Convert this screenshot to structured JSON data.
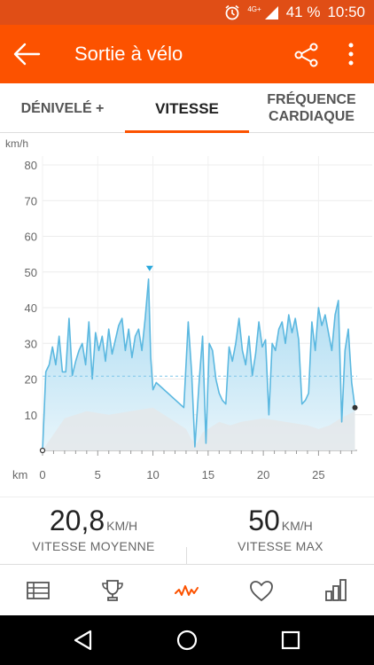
{
  "status": {
    "battery": "41 %",
    "time": "10:50",
    "network": "4G+"
  },
  "appbar": {
    "title": "Sortie à vélo"
  },
  "tabs": [
    {
      "label": "DÉNIVELÉ +",
      "active": false
    },
    {
      "label": "VITESSE",
      "active": true
    },
    {
      "label": "FRÉQUENCE\nCARDIAQUE",
      "active": false
    }
  ],
  "chart_data": {
    "type": "area",
    "title": "",
    "ylabel": "km/h",
    "xlabel": "km",
    "ylim": [
      0,
      80
    ],
    "xlim": [
      0,
      28.5
    ],
    "yticks": [
      10,
      20,
      30,
      40,
      50,
      60,
      70,
      80
    ],
    "xticks": [
      0,
      5,
      10,
      15,
      20,
      25
    ],
    "average_line": 20.8,
    "max_marker": {
      "x": 9.7,
      "y": 50
    },
    "grid": true,
    "series": [
      {
        "x": [
          0,
          0.3,
          0.6,
          0.9,
          1.2,
          1.5,
          1.8,
          2.1,
          2.4,
          2.7,
          3.0,
          3.3,
          3.6,
          3.9,
          4.2,
          4.5,
          4.8,
          5.1,
          5.4,
          5.7,
          6.0,
          6.3,
          6.6,
          6.9,
          7.2,
          7.5,
          7.8,
          8.1,
          8.4,
          8.7,
          9.0,
          9.3,
          9.6,
          9.8,
          10.0,
          10.3,
          12.8,
          13.2,
          13.5,
          13.8,
          14.2,
          14.5,
          14.8,
          15.1,
          15.4,
          15.7,
          16.0,
          16.3,
          16.6,
          16.9,
          17.2,
          17.5,
          17.8,
          18.1,
          18.4,
          18.7,
          19.0,
          19.3,
          19.6,
          19.9,
          20.2,
          20.5,
          20.8,
          21.1,
          21.4,
          21.7,
          22.0,
          22.3,
          22.6,
          22.9,
          23.2,
          23.5,
          23.8,
          24.1,
          24.4,
          24.7,
          25.0,
          25.3,
          25.6,
          25.9,
          26.2,
          26.5,
          26.8,
          27.1,
          27.4,
          27.7,
          28.0,
          28.3
        ],
        "values": [
          0,
          22,
          24,
          29,
          24,
          32,
          22,
          22,
          37,
          21,
          25,
          28,
          30,
          24,
          36,
          20,
          33,
          28,
          32,
          25,
          34,
          27,
          31,
          35,
          37,
          28,
          34,
          26,
          32,
          34,
          28,
          37,
          48,
          26,
          17,
          19,
          12,
          36,
          22,
          1,
          20,
          32,
          2,
          30,
          28,
          20,
          16,
          14,
          13,
          29,
          25,
          30,
          37,
          28,
          24,
          32,
          21,
          27,
          36,
          29,
          31,
          10,
          30,
          28,
          34,
          36,
          30,
          38,
          33,
          37,
          31,
          13,
          14,
          16,
          36,
          28,
          40,
          35,
          38,
          33,
          28,
          38,
          42,
          8,
          28,
          34,
          19,
          12
        ]
      },
      {
        "x": [
          0,
          2,
          4,
          6,
          8,
          10,
          11,
          12,
          13,
          13.5,
          14,
          14.5,
          15,
          16,
          17,
          18,
          20,
          22,
          24,
          25,
          26,
          27,
          28.3
        ],
        "values": [
          0,
          9,
          11,
          10,
          11,
          12,
          10,
          8,
          6,
          3,
          2,
          5,
          6,
          8,
          7,
          8,
          9,
          8,
          7,
          6,
          7,
          9,
          11
        ]
      }
    ]
  },
  "stats": [
    {
      "value": "20,8",
      "unit": "KM/H",
      "label": "VITESSE MOYENNE"
    },
    {
      "value": "50",
      "unit": "KM/H",
      "label": "VITESSE MAX"
    }
  ],
  "nav": [
    {
      "icon": "table-icon"
    },
    {
      "icon": "trophy-icon"
    },
    {
      "icon": "activity-icon"
    },
    {
      "icon": "heart-icon"
    },
    {
      "icon": "bar-chart-icon"
    }
  ],
  "colors": {
    "accent": "#fc5200",
    "line": "#5bb8e0",
    "area": "#bfe3f4",
    "hr_area": "#e6e8ec"
  }
}
